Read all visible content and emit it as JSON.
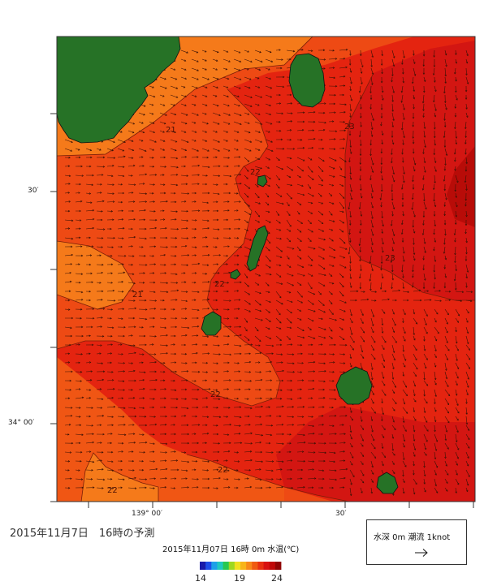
{
  "title": "2015年11月7日　16時の予測",
  "subtitle": "2015年11月07日 16時 0m 水温(℃)",
  "axes": {
    "lat_labels": [
      "30′",
      "34° 00′"
    ],
    "lon_labels": [
      "139° 00′",
      "30′"
    ]
  },
  "isotherm_labels": [
    "21",
    "21",
    "22",
    "22",
    "22",
    "22",
    "22",
    "23",
    "23"
  ],
  "legend": {
    "text": "水深 0m 潮流 1knot",
    "arrow_icon": "right-arrow-icon"
  },
  "colorbar": {
    "ticks": [
      "14",
      "19",
      "24"
    ],
    "colors": [
      "#1a1aa8",
      "#1e4de8",
      "#1ea0e8",
      "#20c8c0",
      "#28c850",
      "#9ed820",
      "#f0e020",
      "#f8b418",
      "#f88818",
      "#f05a10",
      "#e83010",
      "#d81010",
      "#c00808",
      "#900404"
    ]
  },
  "colors": {
    "land": "#267226",
    "sea_21": "#f57a1a",
    "sea_22": "#ee4a14",
    "sea_23": "#e42410",
    "sea_24": "#c80e0a"
  }
}
